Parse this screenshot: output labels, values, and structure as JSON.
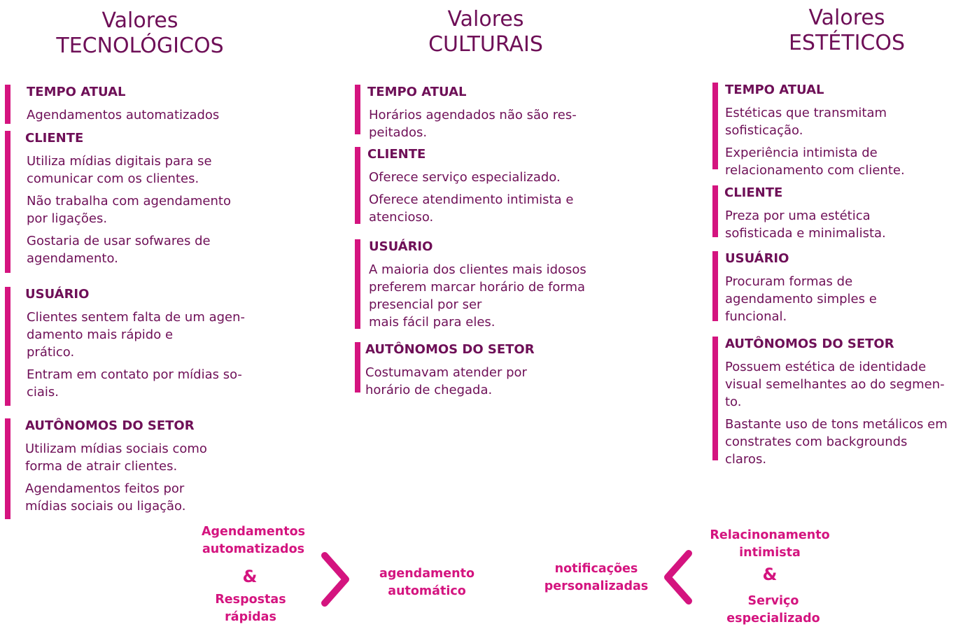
{
  "columns": [
    {
      "title_line1": "Valores",
      "title_line2": "TECNOLÓGICOS",
      "blocks": [
        {
          "heading": "TEMPO ATUAL",
          "items": [
            "Agendamentos automatizados"
          ]
        },
        {
          "heading": "CLIENTE",
          "items": [
            "Utiliza mídias digitais para se\ncomunicar com os clientes.",
            "Não trabalha com agendamento\npor ligações.",
            "Gostaria de usar sofwares de\nagendamento."
          ]
        },
        {
          "heading": "USUÁRIO",
          "items": [
            "Clientes sentem falta de um agen-\ndamento mais rápido e\nprático.",
            "Entram em contato por mídias so-\nciais."
          ]
        },
        {
          "heading": "AUTÔNOMOS DO SETOR",
          "items": [
            "Utilizam mídias sociais como\nforma de atrair clientes.",
            "Agendamentos feitos por\nmídias sociais ou ligação."
          ]
        }
      ]
    },
    {
      "title_line1": "Valores",
      "title_line2": "CULTURAIS",
      "blocks": [
        {
          "heading": "TEMPO ATUAL",
          "items": [
            "Horários agendados não são res-\npeitados."
          ]
        },
        {
          "heading": "CLIENTE",
          "items": [
            "Oferece serviço especializado.",
            "Oferece atendimento  intimista e\natencioso."
          ]
        },
        {
          "heading": "USUÁRIO",
          "items": [
            "A maioria dos clientes mais idosos\npreferem marcar horário de forma\npresencial por ser\nmais fácil para eles."
          ]
        },
        {
          "heading": "AUTÔNOMOS DO SETOR",
          "items": [
            "Costumavam atender por\nhorário de chegada."
          ]
        }
      ]
    },
    {
      "title_line1": "Valores",
      "title_line2": "ESTÉTICOS",
      "blocks": [
        {
          "heading": "TEMPO ATUAL",
          "items": [
            "Estéticas que transmitam\nsofisticação.",
            "Experiência intimista de\nrelacionamento com cliente."
          ]
        },
        {
          "heading": "CLIENTE",
          "items": [
            "Preza por uma estética\nsofisticada e minimalista."
          ]
        },
        {
          "heading": "USUÁRIO",
          "items": [
            "Procuram formas de\nagendamento simples e\nfuncional."
          ]
        },
        {
          "heading": "AUTÔNOMOS DO SETOR",
          "items": [
            "Possuem estética de identidade\nvisual semelhantes ao do segmen-\nto.",
            "Bastante uso de tons metálicos em\nconstrates com backgrounds\nclaros."
          ]
        }
      ]
    }
  ],
  "bottom": {
    "left_top": "Agendamentos\nautomatizados",
    "left_amp": "&",
    "left_bottom": "Respostas\nrápidas",
    "center_left": "agendamento\nautomático",
    "center_right": "notificações\npersonalizadas",
    "right_top": "Relacinonamento\nintimista",
    "right_amp": "&",
    "right_bottom": "Serviço\nespecializado"
  },
  "colors": {
    "accent": "#d4147f",
    "text": "#6e0f57",
    "background": "#ffffff"
  },
  "icons": [
    "chevron-right-icon",
    "chevron-left-icon"
  ]
}
